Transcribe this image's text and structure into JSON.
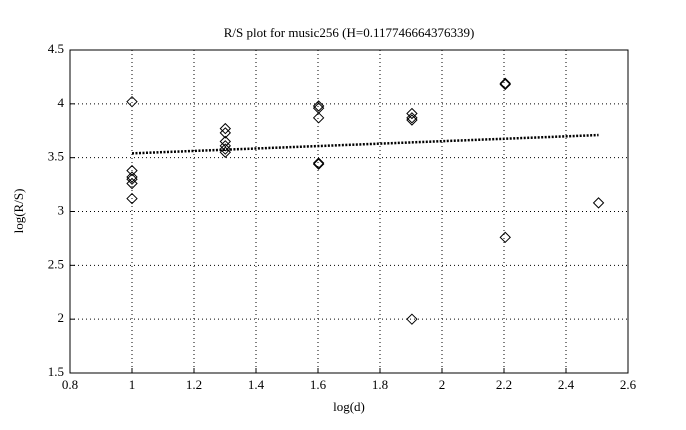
{
  "chart_data": {
    "type": "scatter",
    "title": "R/S plot for music256 (H=0.117746664376339)",
    "x_label": "log(d)",
    "y_label": "log(R/S)",
    "points": {
      "x": [
        1,
        1,
        1,
        1,
        1,
        1,
        1.301,
        1.301,
        1.301,
        1.301,
        1.301,
        1.301,
        1.602,
        1.602,
        1.602,
        1.602,
        1.602,
        1.903,
        1.903,
        1.903,
        1.903,
        2.204,
        2.204,
        2.204,
        2.505
      ],
      "y": [
        4.02,
        3.38,
        3.32,
        3.3,
        3.26,
        3.12,
        3.77,
        3.73,
        3.65,
        3.61,
        3.58,
        3.55,
        3.98,
        3.96,
        3.87,
        3.45,
        3.44,
        3.91,
        3.87,
        3.85,
        2.0,
        4.19,
        4.18,
        2.76,
        3.08
      ],
      "color": "#000000"
    },
    "fit": {
      "x": [
        1,
        2.505
      ],
      "y": [
        3.54,
        3.71
      ],
      "color": "#000000"
    },
    "xlim": [
      0.8,
      2.6
    ],
    "xticks": [
      0.8,
      1,
      1.2,
      1.4,
      1.6,
      1.8,
      2,
      2.2,
      2.4,
      2.6
    ],
    "ylim": [
      1.5,
      4.5
    ],
    "yticks": [
      1.5,
      2,
      2.5,
      3,
      3.5,
      4,
      4.5
    ],
    "grid": true
  }
}
